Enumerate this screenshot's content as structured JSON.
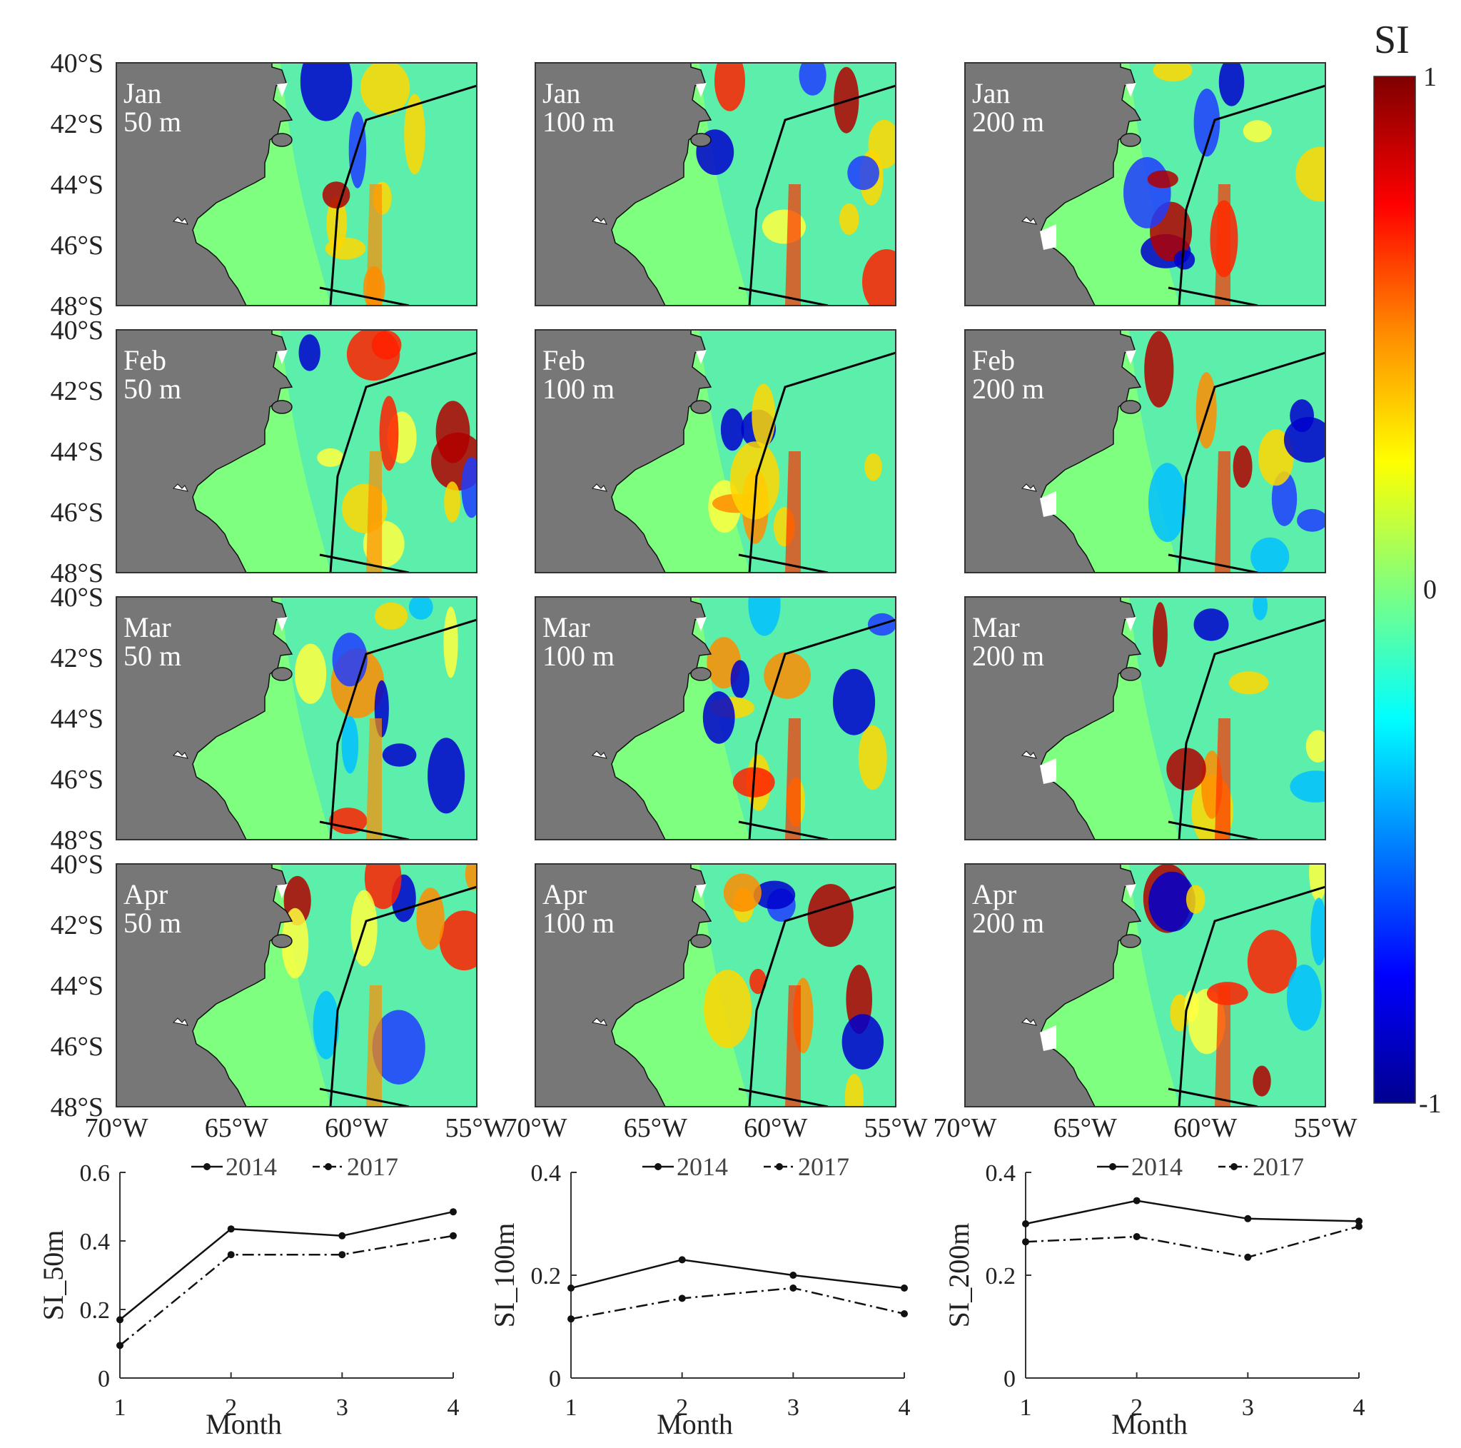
{
  "colorbar": {
    "title": "SI",
    "ticks": [
      "1",
      "0",
      "-1"
    ],
    "colors": [
      "#7f0000",
      "#ff0000",
      "#ff8c00",
      "#ffff00",
      "#7fff7f",
      "#00ffff",
      "#007fff",
      "#0000ff",
      "#00008f"
    ]
  },
  "map_axes": {
    "lat_ticks": [
      "40°S",
      "42°S",
      "44°S",
      "46°S",
      "48°S"
    ],
    "lon_ticks": [
      "70°W",
      "65°W",
      "60°W",
      "55°W"
    ]
  },
  "panels": [
    {
      "month": "Jan",
      "depth": "50 m"
    },
    {
      "month": "Jan",
      "depth": "100 m"
    },
    {
      "month": "Jan",
      "depth": "200 m"
    },
    {
      "month": "Feb",
      "depth": "50 m"
    },
    {
      "month": "Feb",
      "depth": "100 m"
    },
    {
      "month": "Feb",
      "depth": "200 m"
    },
    {
      "month": "Mar",
      "depth": "50 m"
    },
    {
      "month": "Mar",
      "depth": "100 m"
    },
    {
      "month": "Mar",
      "depth": "200 m"
    },
    {
      "month": "Apr",
      "depth": "50 m"
    },
    {
      "month": "Apr",
      "depth": "100 m"
    },
    {
      "month": "Apr",
      "depth": "200 m"
    }
  ],
  "map_colors": {
    "land": "#777777",
    "ocean_base": "#7fff7f",
    "coast_line": "#111111"
  },
  "chart_data": [
    {
      "type": "line",
      "xlabel": "Month",
      "ylabel": "SI_50m",
      "x": [
        1,
        2,
        3,
        4
      ],
      "xticks": [
        "1",
        "2",
        "3",
        "4"
      ],
      "ylim": [
        0,
        0.6
      ],
      "yticks": [
        "0",
        "0.2",
        "0.4",
        "0.6"
      ],
      "series": [
        {
          "name": "2014",
          "values": [
            0.17,
            0.435,
            0.415,
            0.485
          ],
          "style": "solid"
        },
        {
          "name": "2017",
          "values": [
            0.095,
            0.36,
            0.36,
            0.415
          ],
          "style": "dash-dot"
        }
      ],
      "legend": "top"
    },
    {
      "type": "line",
      "xlabel": "Month",
      "ylabel": "SI_100m",
      "x": [
        1,
        2,
        3,
        4
      ],
      "xticks": [
        "1",
        "2",
        "3",
        "4"
      ],
      "ylim": [
        0,
        0.4
      ],
      "yticks": [
        "0",
        "0.2",
        "0.4"
      ],
      "series": [
        {
          "name": "2014",
          "values": [
            0.175,
            0.23,
            0.2,
            0.175
          ],
          "style": "solid"
        },
        {
          "name": "2017",
          "values": [
            0.115,
            0.155,
            0.175,
            0.125
          ],
          "style": "dash-dot"
        }
      ],
      "legend": "top"
    },
    {
      "type": "line",
      "xlabel": "Month",
      "ylabel": "SI_200m",
      "x": [
        1,
        2,
        3,
        4
      ],
      "xticks": [
        "1",
        "2",
        "3",
        "4"
      ],
      "ylim": [
        0,
        0.4
      ],
      "yticks": [
        "0",
        "0.2",
        "0.4"
      ],
      "series": [
        {
          "name": "2014",
          "values": [
            0.3,
            0.345,
            0.31,
            0.305
          ],
          "style": "solid"
        },
        {
          "name": "2017",
          "values": [
            0.265,
            0.275,
            0.235,
            0.295
          ],
          "style": "dash-dot"
        }
      ],
      "legend": "top"
    }
  ]
}
